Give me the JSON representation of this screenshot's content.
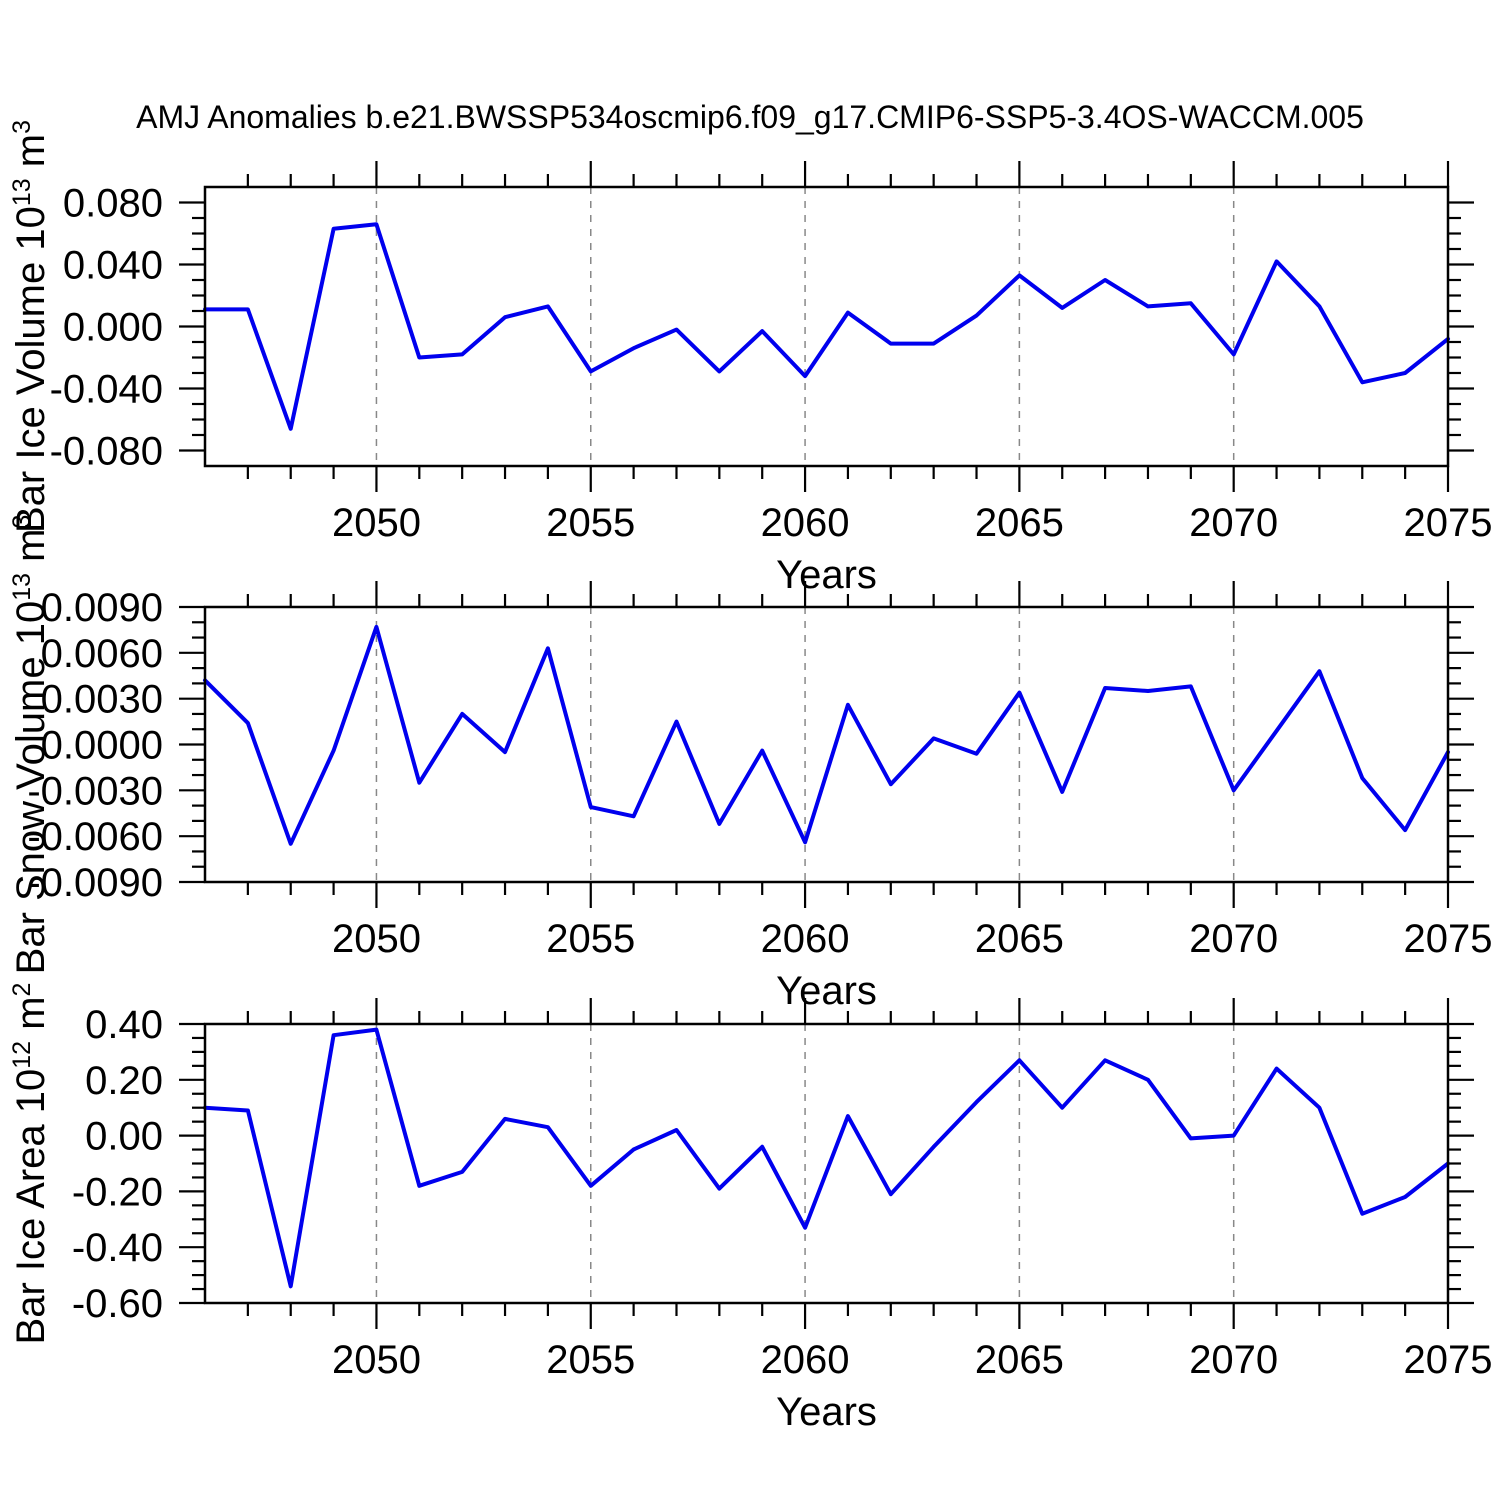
{
  "chart_data": {
    "type": "line",
    "title": "AMJ Anomalies b.e21.BWSSP534oscmip6.f09_g17.CMIP6-SSP5-3.4OS-WACCM.005",
    "xlabel": "Years",
    "xlim": [
      2046,
      2075
    ],
    "x_major_ticks": [
      2050,
      2055,
      2060,
      2065,
      2070,
      2075
    ],
    "x_tick_labels": [
      "2050",
      "2055",
      "2060",
      "2065",
      "2070",
      "2075"
    ],
    "x_gridlines": [
      2050,
      2055,
      2060,
      2065,
      2070
    ],
    "x_minor_step_years": 1,
    "grid_on": false,
    "legend": "none",
    "line_color": "#0000ee",
    "x_years": [
      2046,
      2047,
      2048,
      2049,
      2050,
      2051,
      2052,
      2053,
      2054,
      2055,
      2056,
      2057,
      2058,
      2059,
      2060,
      2061,
      2062,
      2063,
      2064,
      2065,
      2066,
      2067,
      2068,
      2069,
      2070,
      2071,
      2072,
      2073,
      2074,
      2075
    ],
    "panels": [
      {
        "id": "ice-volume",
        "ylabel_text": "Bar Ice Volume 10^13 m^3",
        "ylabel_parts": [
          {
            "text": "Bar Ice Volume 10",
            "sup": false
          },
          {
            "text": "13",
            "sup": true
          },
          {
            "text": " m",
            "sup": false
          },
          {
            "text": "3",
            "sup": true
          }
        ],
        "ylim": [
          -0.09,
          0.09
        ],
        "ytick_values": [
          0.08,
          0.04,
          0.0,
          -0.04,
          -0.08
        ],
        "ytick_labels": [
          "0.080",
          "0.040",
          "0.000",
          "-0.040",
          "-0.080"
        ],
        "y_minor_step": 0.01,
        "values": [
          0.011,
          0.011,
          -0.066,
          0.063,
          0.066,
          -0.02,
          -0.018,
          0.006,
          0.013,
          -0.029,
          -0.014,
          -0.002,
          -0.029,
          -0.003,
          -0.032,
          0.009,
          -0.011,
          -0.011,
          0.007,
          0.033,
          0.012,
          0.03,
          0.013,
          0.015,
          -0.018,
          0.042,
          0.013,
          -0.036,
          -0.03,
          -0.008
        ]
      },
      {
        "id": "snow-volume",
        "ylabel_text": "Bar Snow Volume 10^13 m^3",
        "ylabel_parts": [
          {
            "text": "Bar Snow Volume 10",
            "sup": false
          },
          {
            "text": "13",
            "sup": true
          },
          {
            "text": " m",
            "sup": false
          },
          {
            "text": "3",
            "sup": true
          }
        ],
        "ylim": [
          -0.009,
          0.009
        ],
        "ytick_values": [
          0.009,
          0.006,
          0.003,
          0.0,
          -0.003,
          -0.006,
          -0.009
        ],
        "ytick_labels": [
          "0.0090",
          "0.0060",
          "0.0030",
          "0.0000",
          "-0.0030",
          "-0.0060",
          "-0.0090"
        ],
        "y_minor_step": 0.001,
        "values": [
          0.0042,
          0.0014,
          -0.0065,
          -0.0004,
          0.0077,
          -0.0025,
          0.002,
          -0.0005,
          0.0063,
          -0.0041,
          -0.0047,
          0.0015,
          -0.0052,
          -0.0004,
          -0.0064,
          0.0026,
          -0.0026,
          0.0004,
          -0.0006,
          0.0034,
          -0.0031,
          0.0037,
          0.0035,
          0.0038,
          -0.003,
          0.0009,
          0.0048,
          -0.0022,
          -0.0056,
          -0.0005
        ]
      },
      {
        "id": "ice-area",
        "ylabel_text": "Bar Ice Area 10^12 m^2",
        "ylabel_parts": [
          {
            "text": "Bar Ice Area 10",
            "sup": false
          },
          {
            "text": "12",
            "sup": true
          },
          {
            "text": " m",
            "sup": false
          },
          {
            "text": "2",
            "sup": true
          }
        ],
        "ylim": [
          -0.6,
          0.4
        ],
        "ytick_values": [
          0.4,
          0.2,
          0.0,
          -0.2,
          -0.4,
          -0.6
        ],
        "ytick_labels": [
          "0.40",
          "0.20",
          "0.00",
          "-0.20",
          "-0.40",
          "-0.60"
        ],
        "y_minor_step": 0.05,
        "values": [
          0.1,
          0.09,
          -0.54,
          0.36,
          0.38,
          -0.18,
          -0.13,
          0.06,
          0.03,
          -0.18,
          -0.05,
          0.02,
          -0.19,
          -0.04,
          -0.33,
          0.07,
          -0.21,
          -0.04,
          0.12,
          0.27,
          0.1,
          0.27,
          0.2,
          -0.01,
          0.0,
          0.24,
          0.1,
          -0.28,
          -0.22,
          -0.1
        ]
      }
    ],
    "colors": {
      "line": "#0000ee",
      "axis": "#000000",
      "gridline": "#888888",
      "background": "#ffffff"
    }
  }
}
